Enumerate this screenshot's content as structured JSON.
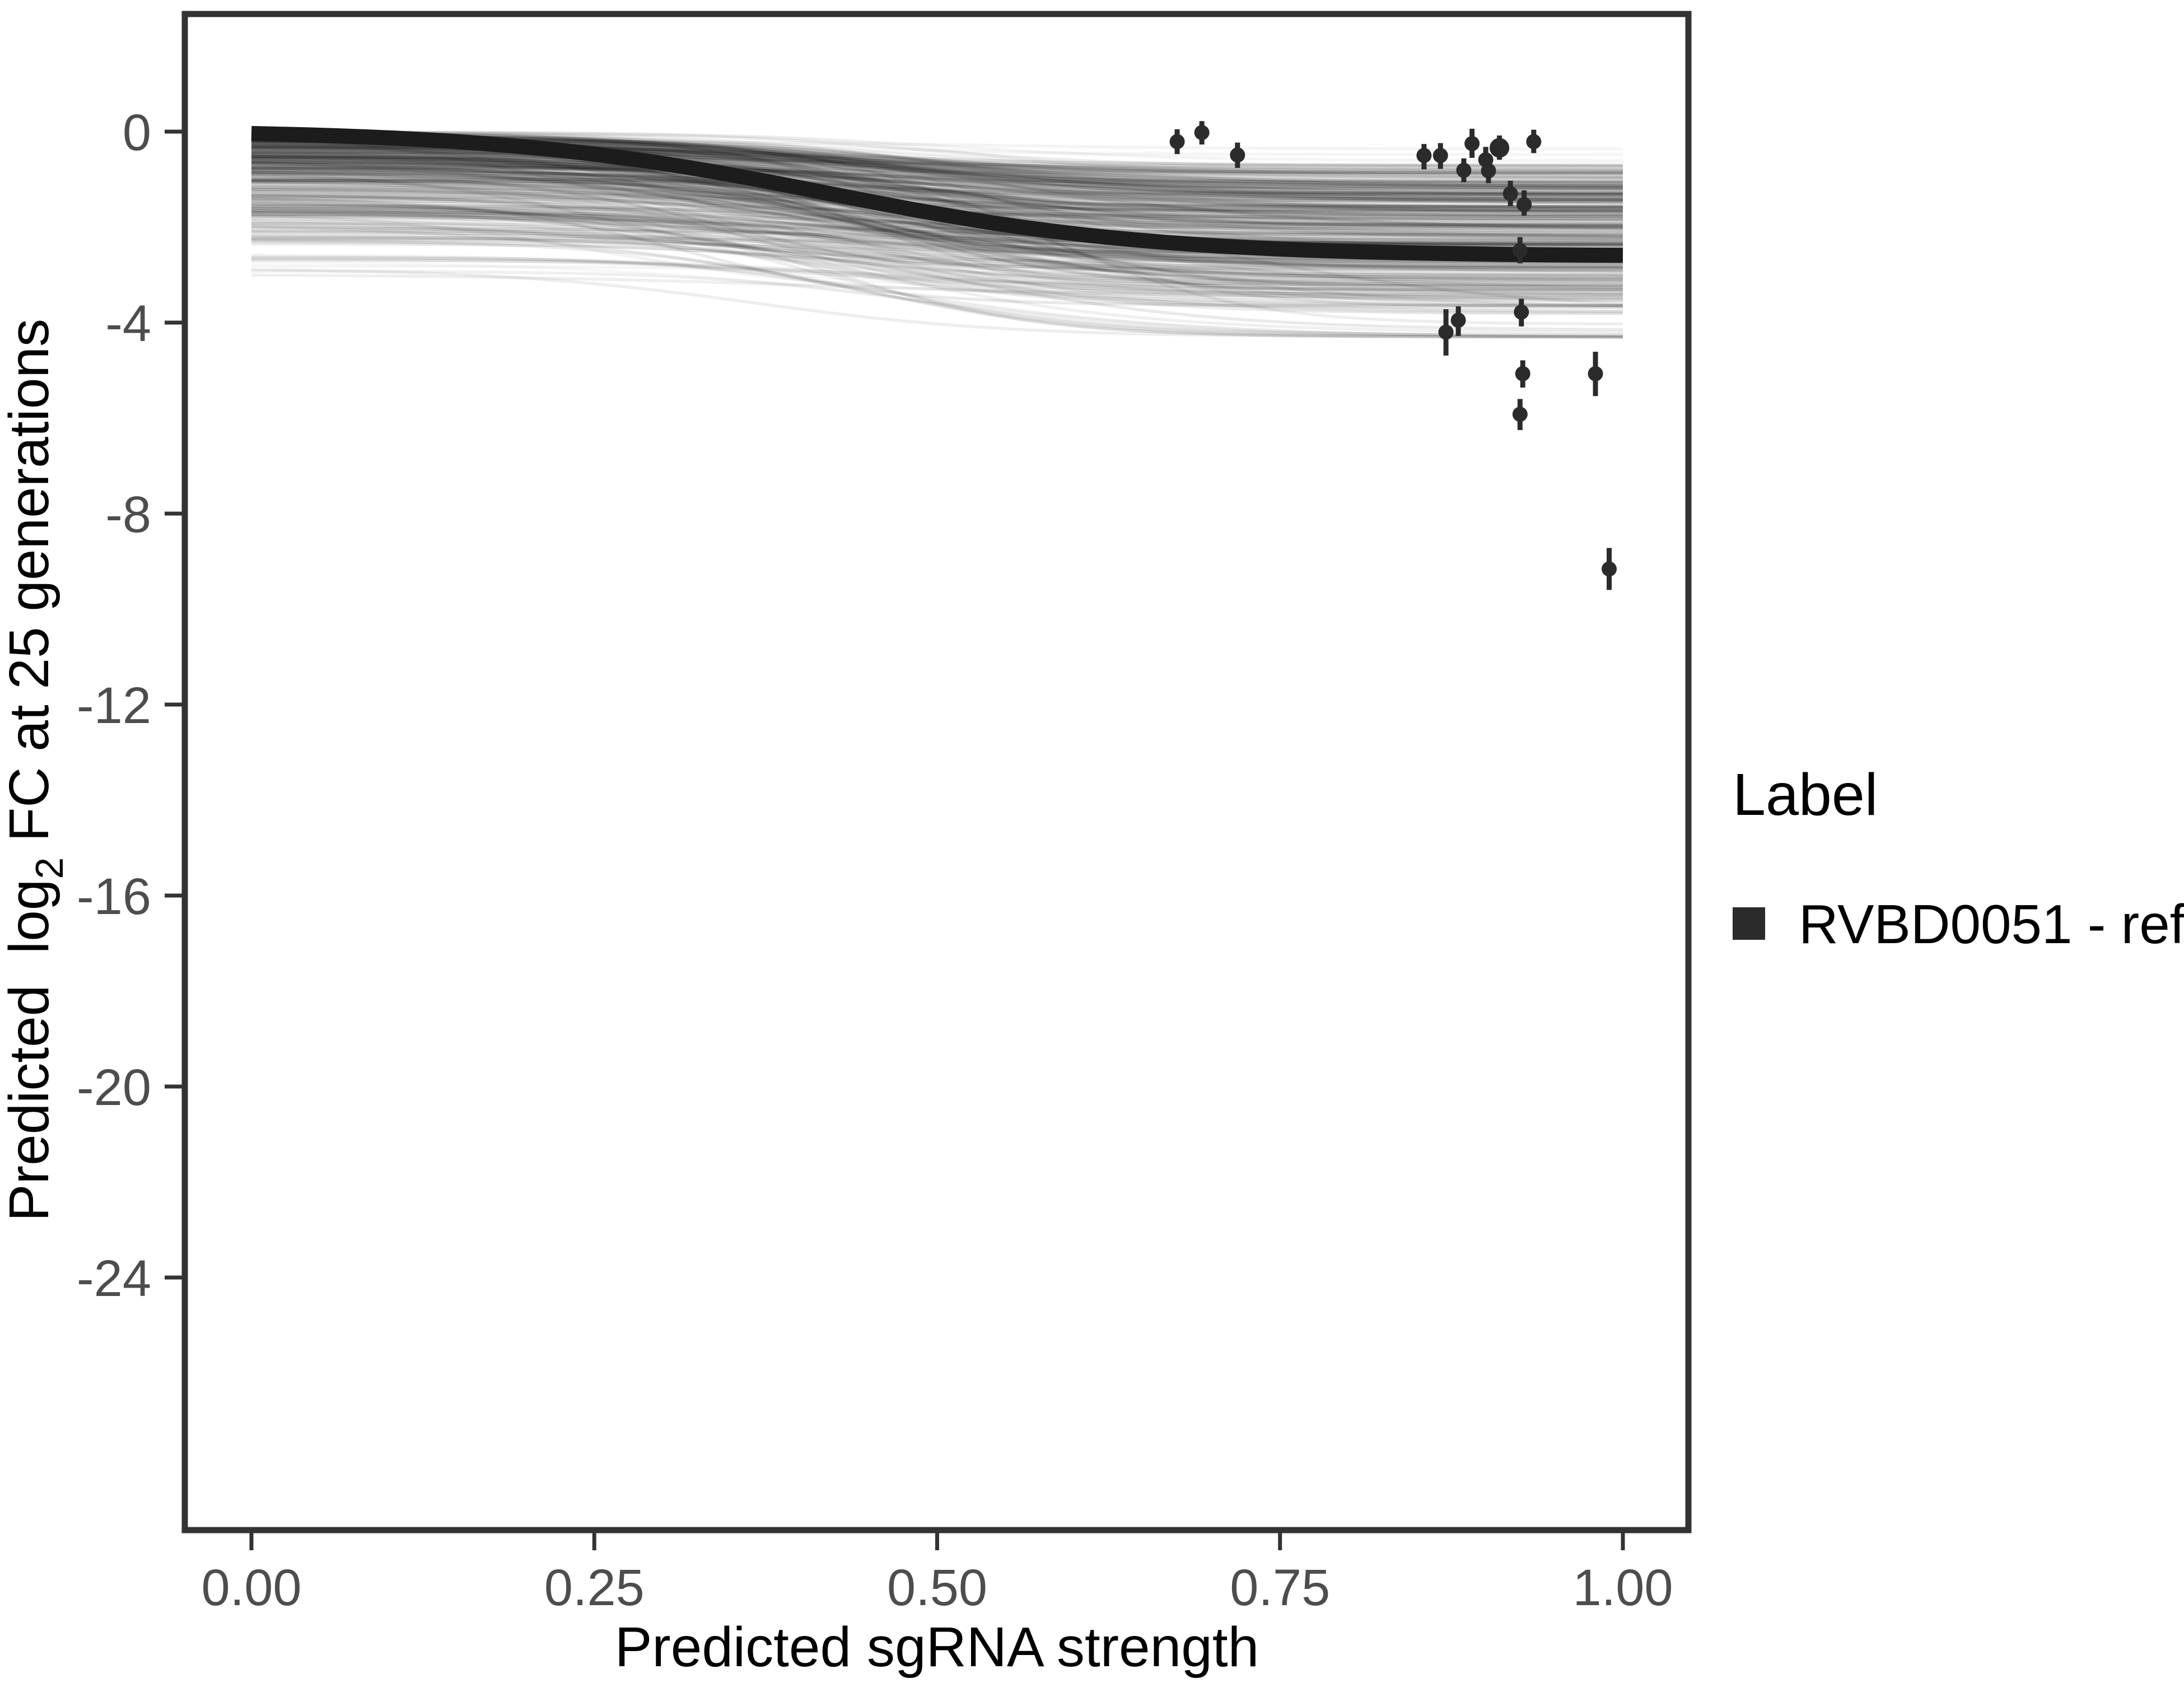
{
  "figure": {
    "kind": "ggplot-style fitted dose-response figure",
    "background": "#ffffff"
  },
  "style": {
    "panel_border_color": "#333333",
    "tick_mark_color": "#333333",
    "tick_label_color": "#4d4d4d",
    "axis_title_color": "#000000",
    "mean_curve_color": "#1c1c1c",
    "posterior_curve_color": "#000000",
    "point_color": "#2b2b2b",
    "background": "#ffffff"
  },
  "chart_data": {
    "type": "line",
    "title": "",
    "xlabel": "Predicted sgRNA strength",
    "ylabel": {
      "pre": "Predicted  log",
      "sub": "2",
      "post": " FC at 25 generations"
    },
    "xlim": [
      -0.049,
      1.048
    ],
    "ylim": [
      -29.3,
      2.46
    ],
    "grid": false,
    "xticks": {
      "values": [
        0.0,
        0.25,
        0.5,
        0.75,
        1.0
      ],
      "labels": [
        "0.00",
        "0.25",
        "0.50",
        "0.75",
        "1.00"
      ]
    },
    "yticks": {
      "values": [
        0,
        -4,
        -8,
        -12,
        -16,
        -20,
        -24
      ],
      "labels": [
        "0",
        "-4",
        "-8",
        "-12",
        "-16",
        "-20",
        "-24"
      ]
    },
    "legend": {
      "title": "Label",
      "position": "right",
      "entries": [
        {
          "label": "RVBD0051 - ref",
          "key_color": "#2b2b2b"
        }
      ]
    },
    "mean_curve": {
      "name": "RVBD0051 - ref",
      "shape": "sigmoid",
      "start_value": -0.04,
      "end_value": -2.59,
      "midpoint": 0.42,
      "steepness": 8.5,
      "x_range": [
        0,
        1
      ],
      "stroke_width": 27
    },
    "posterior_band": {
      "description": "translucent posterior-sample sigmoid curves",
      "count": 380,
      "seed": 12345,
      "x_range": [
        0,
        1
      ],
      "start_spread": [
        0,
        -3.3
      ],
      "end_spread": [
        -0.3,
        -4.3
      ],
      "alpha_range": [
        0.028,
        0.09
      ],
      "stroke_width": 5.5
    },
    "points": [
      {
        "x": 0.675,
        "y": -0.21,
        "ymin": -0.47,
        "ymax": 0.05,
        "size": 1
      },
      {
        "x": 0.693,
        "y": -0.02,
        "ymin": -0.27,
        "ymax": 0.22,
        "size": 1
      },
      {
        "x": 0.719,
        "y": -0.49,
        "ymin": -0.76,
        "ymax": -0.23,
        "size": 1
      },
      {
        "x": 0.855,
        "y": -0.5,
        "ymin": -0.79,
        "ymax": -0.26,
        "size": 1
      },
      {
        "x": 0.867,
        "y": -0.5,
        "ymin": -0.78,
        "ymax": -0.24,
        "size": 1
      },
      {
        "x": 0.884,
        "y": -0.81,
        "ymin": -1.06,
        "ymax": -0.56,
        "size": 1
      },
      {
        "x": 0.89,
        "y": -0.25,
        "ymin": -0.55,
        "ymax": 0.06,
        "size": 1
      },
      {
        "x": 0.9,
        "y": -0.59,
        "ymin": -0.88,
        "ymax": -0.32,
        "size": 1
      },
      {
        "x": 0.902,
        "y": -0.82,
        "ymin": -1.08,
        "ymax": -0.56,
        "size": 1
      },
      {
        "x": 0.91,
        "y": -0.34,
        "ymin": -0.59,
        "ymax": -0.08,
        "size": 1.3
      },
      {
        "x": 0.918,
        "y": -1.3,
        "ymin": -1.56,
        "ymax": -1.03,
        "size": 1
      },
      {
        "x": 0.925,
        "y": -2.49,
        "ymin": -2.76,
        "ymax": -2.21,
        "size": 1
      },
      {
        "x": 0.928,
        "y": -1.53,
        "ymin": -1.76,
        "ymax": -1.23,
        "size": 1
      },
      {
        "x": 0.935,
        "y": -0.21,
        "ymin": -0.45,
        "ymax": 0.04,
        "size": 1
      },
      {
        "x": 0.871,
        "y": -4.2,
        "ymin": -4.69,
        "ymax": -3.72,
        "size": 1
      },
      {
        "x": 0.88,
        "y": -3.95,
        "ymin": -4.28,
        "ymax": -3.66,
        "size": 1
      },
      {
        "x": 0.926,
        "y": -3.78,
        "ymin": -4.08,
        "ymax": -3.5,
        "size": 1
      },
      {
        "x": 0.925,
        "y": -5.92,
        "ymin": -6.25,
        "ymax": -5.6,
        "size": 1
      },
      {
        "x": 0.927,
        "y": -5.07,
        "ymin": -5.36,
        "ymax": -4.79,
        "size": 1
      },
      {
        "x": 0.98,
        "y": -5.07,
        "ymin": -5.54,
        "ymax": -4.61,
        "size": 1
      },
      {
        "x": 0.99,
        "y": -9.16,
        "ymin": -9.6,
        "ymax": -8.72,
        "size": 1
      }
    ]
  }
}
